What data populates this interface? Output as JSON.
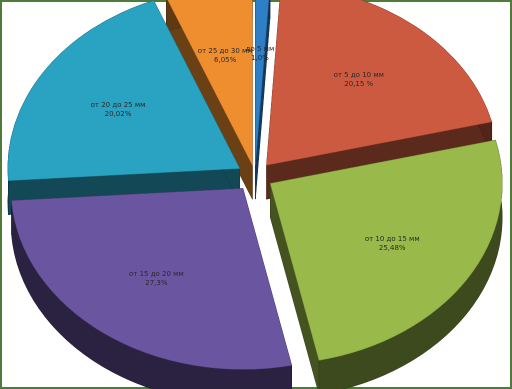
{
  "chart_data": {
    "type": "pie",
    "title": "",
    "three_d": true,
    "exploded": true,
    "slices": [
      {
        "label": "до 5 мм",
        "value": 1.0,
        "value_label": "1,0%",
        "color": "#2f7fc7"
      },
      {
        "label": "от 5 до 10 мм",
        "value": 20.15,
        "value_label": "20,15 %",
        "color": "#cc5a40"
      },
      {
        "label": "от 10 до 15 мм",
        "value": 25.48,
        "value_label": "25,48%",
        "color": "#99b94a"
      },
      {
        "label": "от 15 до 20 мм",
        "value": 27.3,
        "value_label": "27,3%",
        "color": "#6a55a0"
      },
      {
        "label": "от 20 до 25 мм",
        "value": 20.02,
        "value_label": "20,02%",
        "color": "#2aa3c2"
      },
      {
        "label": "от 25 до 30 мм",
        "value": 6.05,
        "value_label": "6,05%",
        "color": "#ee8e2e"
      }
    ]
  }
}
